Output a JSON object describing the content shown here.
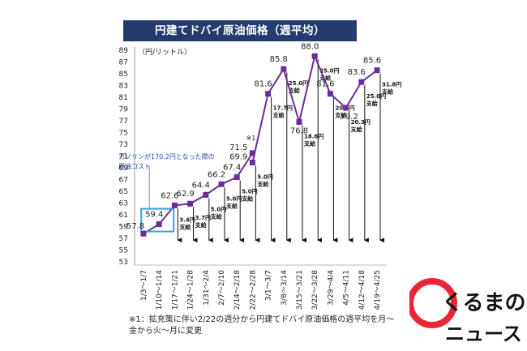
{
  "header": {
    "title": "円建てドバイ原油価格（週平均）"
  },
  "unit_label": "（円/リットル）",
  "callout": {
    "text": "ガソリンが170.2円となった際の原油コスト"
  },
  "footnote": "※1：拡充策に伴い2/22の週分から円建てドバイ原油価格の週平均を月～金から火～月に変更",
  "footnote_marker": "※1",
  "brand": {
    "line1": "くるまの",
    "line2": "ニュース",
    "accent_color": "#e60012"
  },
  "chart_data": {
    "type": "line",
    "title": "円建てドバイ原油価格（週平均）",
    "ylabel": "（円/リットル）",
    "xlabel": "",
    "ylim": [
      53,
      89
    ],
    "yticks": [
      53,
      55,
      57,
      59,
      61,
      63,
      65,
      67,
      69,
      71,
      73,
      75,
      77,
      79,
      81,
      83,
      85,
      87,
      89
    ],
    "grid": false,
    "line_color": "#6a2c9a",
    "highlight_color": "#29a8e0",
    "categories": [
      "1/3～1/7",
      "1/10～1/14",
      "1/17～1/21",
      "1/24～1/28",
      "1/31～2/4",
      "2/7～2/10",
      "2/14～2/18",
      "2/22～2/28",
      "3/1～3/7",
      "3/8～3/14",
      "3/15～3/21",
      "3/22～3/28",
      "3/29～4/4",
      "4/5～4/11",
      "4/12～4/18",
      "4/19～4/25"
    ],
    "values": [
      57.8,
      59.4,
      62.6,
      62.9,
      64.4,
      66.2,
      67.4,
      null,
      81.6,
      85.8,
      76.8,
      88.0,
      81.6,
      79.2,
      83.6,
      85.6
    ],
    "split_point": {
      "index": 7,
      "before": 71.5,
      "after": 69.9,
      "marker": "※1"
    },
    "labels": [
      "57.8",
      "59.4",
      "62.6",
      "62.9",
      "64.4",
      "66.2",
      "67.4",
      "",
      "81.6",
      "85.8",
      "76.8",
      "88.0",
      "81.6",
      "79.2",
      "83.6",
      "85.6"
    ],
    "subsidy_base": 57.8,
    "subsidies": [
      {
        "index": 2,
        "text": "3.4円支給"
      },
      {
        "index": 3,
        "text": "3.7円支給"
      },
      {
        "index": 4,
        "text": "5.0円支給"
      },
      {
        "index": 5,
        "text": "5.0円支給"
      },
      {
        "index": 6,
        "text": "5.0円支給"
      },
      {
        "index": 7,
        "text": "5.0円支給"
      },
      {
        "index": 8,
        "text": "17.7円支給"
      },
      {
        "index": 9,
        "text": "25.0円支給"
      },
      {
        "index": 10,
        "text": "18.6円支給"
      },
      {
        "index": 11,
        "text": "25.0円支給"
      },
      {
        "index": 12,
        "text": "20.7円支給"
      },
      {
        "index": 13,
        "text": "20.3円支給"
      },
      {
        "index": 14,
        "text": "25.0円支給"
      },
      {
        "index": 15,
        "text": "31.8円支給"
      }
    ]
  }
}
